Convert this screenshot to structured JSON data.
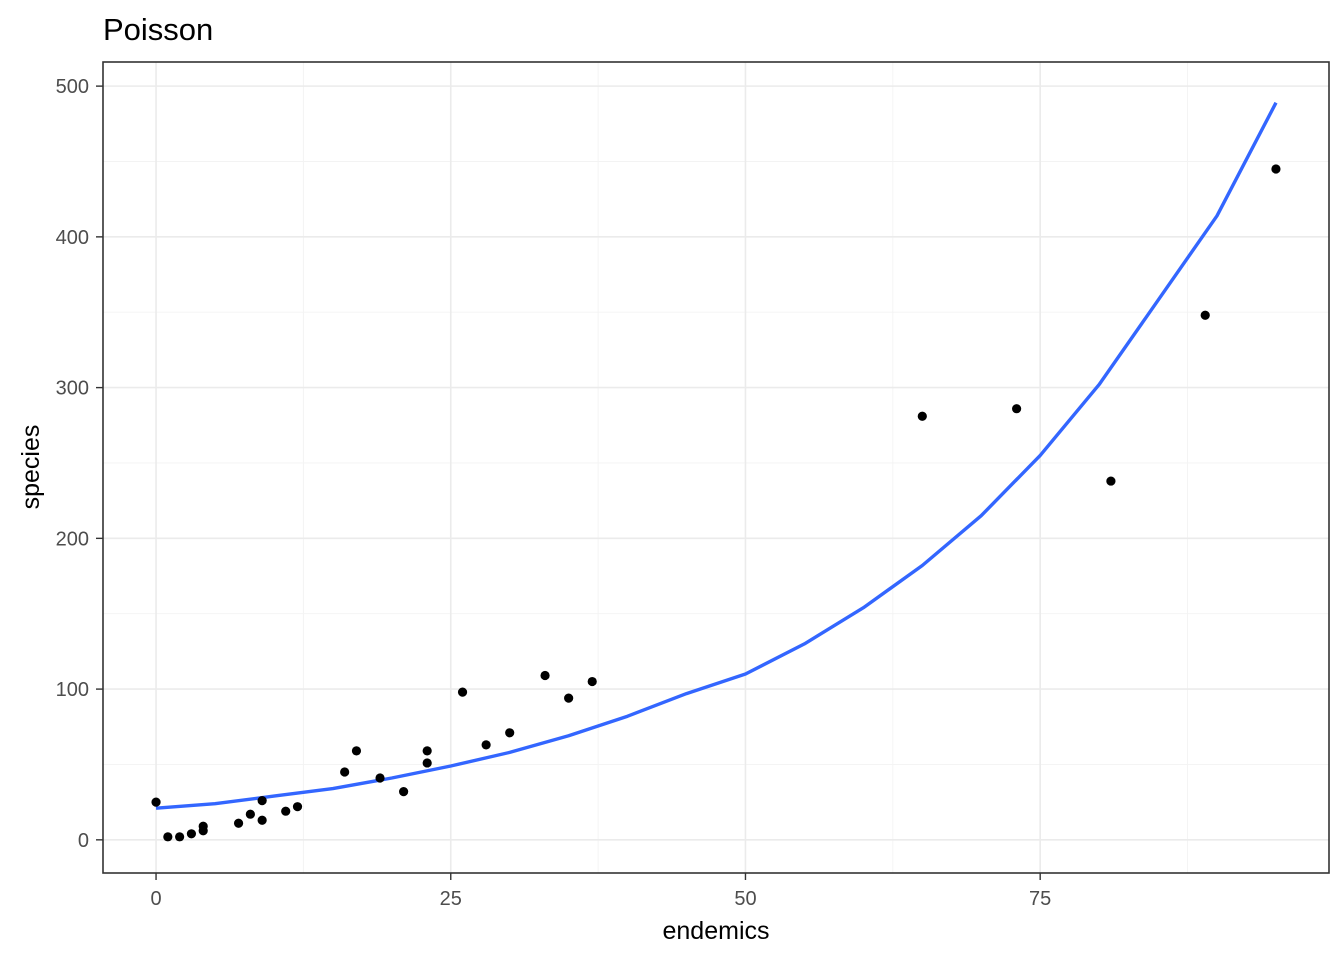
{
  "chart_data": {
    "type": "scatter",
    "title": "Poisson",
    "xlabel": "endemics",
    "ylabel": "species",
    "xlim": [
      -4.5,
      99.5
    ],
    "ylim": [
      -22,
      516
    ],
    "x_ticks": [
      0,
      25,
      50,
      75
    ],
    "y_ticks": [
      0,
      100,
      200,
      300,
      400,
      500
    ],
    "x_minor_ticks": [
      12.5,
      37.5,
      62.5,
      87.5
    ],
    "y_minor_ticks": [
      50,
      150,
      250,
      350,
      450
    ],
    "grid": true,
    "point_color": "#000000",
    "line_color": "#3366ff",
    "points": [
      {
        "x": 0,
        "y": 25
      },
      {
        "x": 1,
        "y": 2
      },
      {
        "x": 2,
        "y": 2
      },
      {
        "x": 3,
        "y": 4
      },
      {
        "x": 4,
        "y": 6
      },
      {
        "x": 4,
        "y": 9
      },
      {
        "x": 7,
        "y": 11
      },
      {
        "x": 8,
        "y": 17
      },
      {
        "x": 9,
        "y": 13
      },
      {
        "x": 9,
        "y": 26
      },
      {
        "x": 11,
        "y": 19
      },
      {
        "x": 12,
        "y": 22
      },
      {
        "x": 16,
        "y": 45
      },
      {
        "x": 17,
        "y": 59
      },
      {
        "x": 19,
        "y": 41
      },
      {
        "x": 21,
        "y": 32
      },
      {
        "x": 23,
        "y": 51
      },
      {
        "x": 23,
        "y": 59
      },
      {
        "x": 26,
        "y": 98
      },
      {
        "x": 28,
        "y": 63
      },
      {
        "x": 30,
        "y": 71
      },
      {
        "x": 33,
        "y": 109
      },
      {
        "x": 35,
        "y": 94
      },
      {
        "x": 37,
        "y": 105
      },
      {
        "x": 65,
        "y": 281
      },
      {
        "x": 73,
        "y": 286
      },
      {
        "x": 81,
        "y": 238
      },
      {
        "x": 89,
        "y": 348
      },
      {
        "x": 95,
        "y": 445
      }
    ],
    "fit_line": {
      "x": [
        0,
        5,
        10,
        15,
        20,
        25,
        30,
        35,
        40,
        45,
        50,
        55,
        60,
        65,
        70,
        75,
        80,
        85,
        90,
        95
      ],
      "y": [
        21,
        24,
        29,
        34,
        41,
        49,
        58,
        69,
        82,
        97,
        110,
        130,
        154,
        182,
        215,
        255,
        302,
        358,
        414,
        489
      ]
    }
  }
}
